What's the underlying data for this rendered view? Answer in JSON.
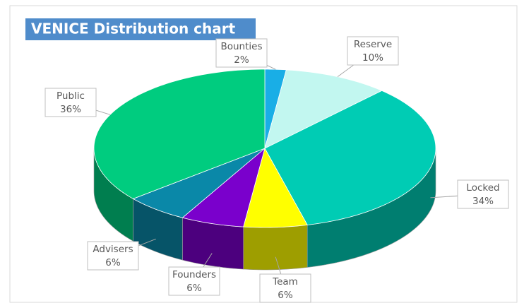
{
  "chart_data": {
    "type": "pie3d",
    "title": "VENICE Distribution chart",
    "categories": [
      "Bounties",
      "Reserve",
      "Locked",
      "Team",
      "Founders",
      "Advisers",
      "Public"
    ],
    "values": [
      2,
      10,
      34,
      6,
      6,
      6,
      36
    ],
    "value_labels": [
      "2%",
      "10%",
      "34%",
      "6%",
      "6%",
      "6%",
      "36%"
    ],
    "colors": [
      "#19aee6",
      "#c2f7f0",
      "#00ccb4",
      "#ffff00",
      "#7a00cc",
      "#0a88a8",
      "#00cc7f"
    ]
  }
}
